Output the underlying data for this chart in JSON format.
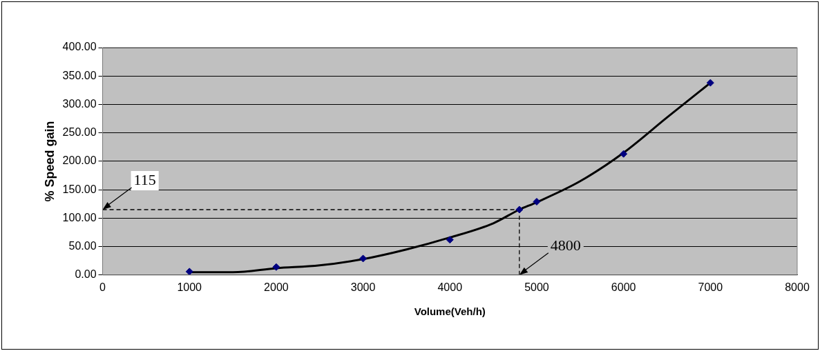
{
  "chart_data": {
    "type": "scatter",
    "xlabel": "Volume(Veh/h)",
    "ylabel": "% Speed gain",
    "xlim": [
      0,
      8000
    ],
    "xticks": [
      0,
      1000,
      2000,
      3000,
      4000,
      5000,
      6000,
      7000,
      8000
    ],
    "ylim": [
      0,
      400
    ],
    "yticks": [
      {
        "value": 0,
        "label": "0.00"
      },
      {
        "value": 50,
        "label": "50.00"
      },
      {
        "value": 100,
        "label": "100.00"
      },
      {
        "value": 150,
        "label": "150.00"
      },
      {
        "value": 200,
        "label": "200.00"
      },
      {
        "value": 250,
        "label": "250.00"
      },
      {
        "value": 300,
        "label": "300.00"
      },
      {
        "value": 350,
        "label": "350.00"
      },
      {
        "value": 400,
        "label": "400.00"
      }
    ],
    "grid": "y",
    "legend": false,
    "marker": "diamond",
    "series": [
      {
        "type": "scatter",
        "color": "#000080",
        "x": [
          1000,
          2000,
          3000,
          4000,
          4800,
          5000,
          6000,
          7000
        ],
        "values": [
          6,
          14,
          29,
          62,
          115,
          129,
          213,
          338
        ]
      },
      {
        "type": "line",
        "color": "#000000",
        "marker": "none",
        "x": [
          1000,
          1500,
          2000,
          2500,
          3000,
          3500,
          4000,
          4500,
          4800,
          5000,
          5500,
          6000,
          6500,
          7000
        ],
        "values": [
          5,
          5,
          12,
          17,
          28,
          45,
          66,
          91,
          115,
          128,
          165,
          215,
          277,
          338
        ]
      },
      {
        "type": "line",
        "color": "#000000",
        "marker": "none",
        "line_style": "dashed",
        "x": [
          0,
          4800
        ],
        "values": [
          115,
          115
        ]
      },
      {
        "type": "line",
        "color": "#000000",
        "marker": "none",
        "line_style": "dashed",
        "x": [
          4800,
          4800
        ],
        "values": [
          0,
          115
        ]
      }
    ],
    "annotations": [
      {
        "text": "115",
        "x": 0,
        "y": 115
      },
      {
        "text": "4800",
        "x": 4800,
        "y": 0
      }
    ]
  }
}
